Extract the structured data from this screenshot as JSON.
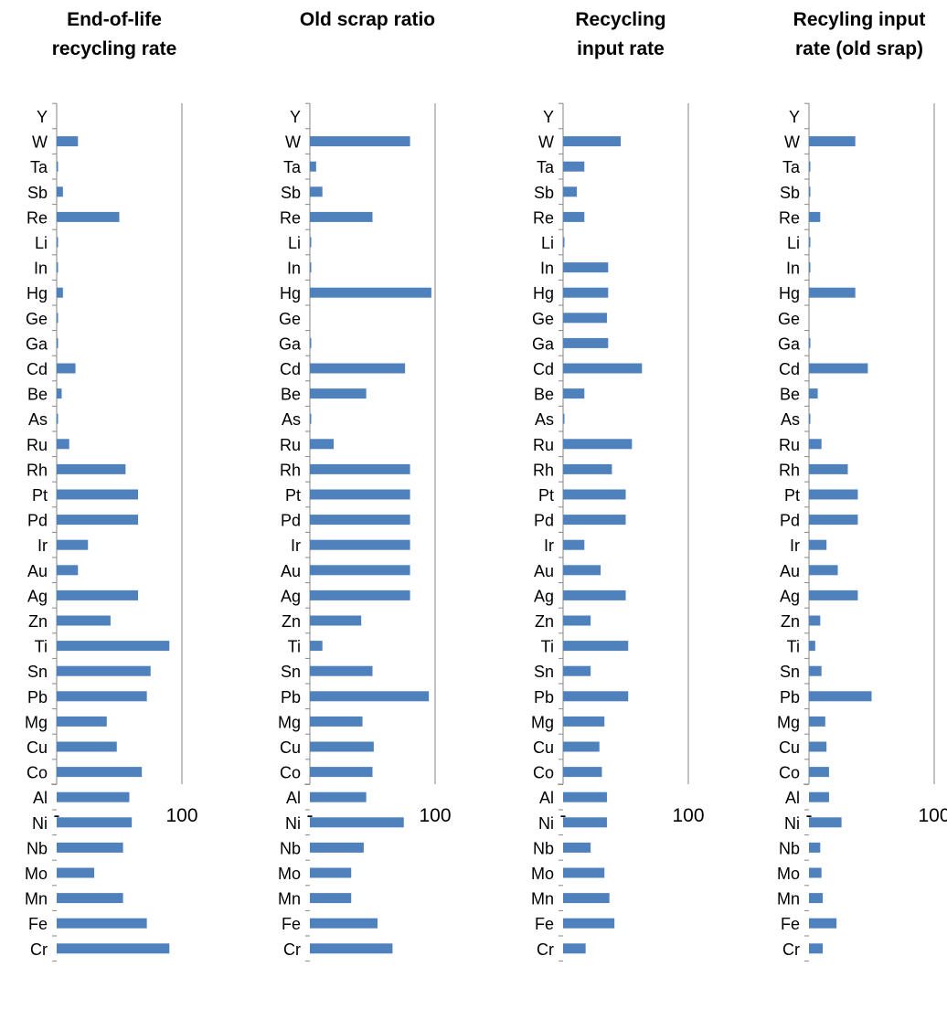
{
  "chart_data": [
    {
      "type": "bar",
      "title": "End-of-life recycling rate",
      "xlim": [
        0,
        100
      ],
      "x_tick_labels": [
        "-",
        "100"
      ],
      "categories": [
        "Y",
        "W",
        "Ta",
        "Sb",
        "Re",
        "Li",
        "In",
        "Hg",
        "Ge",
        "Ga",
        "Cd",
        "Be",
        "As",
        "Ru",
        "Rh",
        "Pt",
        "Pd",
        "Ir",
        "Au",
        "Ag",
        "Zn",
        "Ti",
        "Sn",
        "Pb",
        "Mg",
        "Cu",
        "Co",
        "Al",
        "Ni",
        "Nb",
        "Mo",
        "Mn",
        "Fe",
        "Cr"
      ],
      "values": [
        0,
        17,
        1,
        5,
        50,
        1,
        1,
        5,
        1,
        1,
        15,
        4,
        1,
        10,
        55,
        65,
        65,
        25,
        17,
        65,
        43,
        90,
        75,
        72,
        40,
        48,
        68,
        58,
        60,
        53,
        30,
        53,
        72,
        90
      ],
      "color": "#4f81bd"
    },
    {
      "type": "bar",
      "title": "Old scrap ratio",
      "xlim": [
        0,
        100
      ],
      "x_tick_labels": [
        "-",
        "100"
      ],
      "categories": [
        "Y",
        "W",
        "Ta",
        "Sb",
        "Re",
        "Li",
        "In",
        "Hg",
        "Ge",
        "Ga",
        "Cd",
        "Be",
        "As",
        "Ru",
        "Rh",
        "Pt",
        "Pd",
        "Ir",
        "Au",
        "Ag",
        "Zn",
        "Ti",
        "Sn",
        "Pb",
        "Mg",
        "Cu",
        "Co",
        "Al",
        "Ni",
        "Nb",
        "Mo",
        "Mn",
        "Fe",
        "Cr"
      ],
      "values": [
        0,
        80,
        5,
        10,
        50,
        1,
        1,
        97,
        0,
        1,
        76,
        45,
        1,
        19,
        80,
        80,
        80,
        80,
        80,
        80,
        41,
        10,
        50,
        95,
        42,
        51,
        50,
        45,
        75,
        43,
        33,
        33,
        54,
        66
      ],
      "color": "#4f81bd"
    },
    {
      "type": "bar",
      "title": "Recycling input rate",
      "xlim": [
        0,
        100
      ],
      "x_tick_labels": [
        "-",
        "100"
      ],
      "categories": [
        "Y",
        "W",
        "Ta",
        "Sb",
        "Re",
        "Li",
        "In",
        "Hg",
        "Ge",
        "Ga",
        "Cd",
        "Be",
        "As",
        "Ru",
        "Rh",
        "Pt",
        "Pd",
        "Ir",
        "Au",
        "Ag",
        "Zn",
        "Ti",
        "Sn",
        "Pb",
        "Mg",
        "Cu",
        "Co",
        "Al",
        "Ni",
        "Nb",
        "Mo",
        "Mn",
        "Fe",
        "Cr"
      ],
      "values": [
        0,
        46,
        17,
        11,
        17,
        1,
        36,
        36,
        35,
        36,
        63,
        17,
        1,
        55,
        39,
        50,
        50,
        17,
        30,
        50,
        22,
        52,
        22,
        52,
        33,
        29,
        31,
        35,
        35,
        22,
        33,
        37,
        41,
        18
      ],
      "color": "#4f81bd"
    },
    {
      "type": "bar",
      "title": "Recyling input rate (old srap)",
      "xlim": [
        0,
        100
      ],
      "x_tick_labels": [
        "-",
        "100"
      ],
      "categories": [
        "Y",
        "W",
        "Ta",
        "Sb",
        "Re",
        "Li",
        "In",
        "Hg",
        "Ge",
        "Ga",
        "Cd",
        "Be",
        "As",
        "Ru",
        "Rh",
        "Pt",
        "Pd",
        "Ir",
        "Au",
        "Ag",
        "Zn",
        "Ti",
        "Sn",
        "Pb",
        "Mg",
        "Cu",
        "Co",
        "Al",
        "Ni",
        "Nb",
        "Mo",
        "Mn",
        "Fe",
        "Cr"
      ],
      "values": [
        0,
        37,
        1,
        1,
        9,
        1,
        1,
        37,
        0,
        1,
        47,
        7,
        1,
        10,
        31,
        39,
        39,
        14,
        23,
        39,
        9,
        5,
        10,
        50,
        13,
        14,
        16,
        16,
        26,
        9,
        10,
        11,
        22,
        11
      ],
      "color": "#4f81bd"
    }
  ]
}
